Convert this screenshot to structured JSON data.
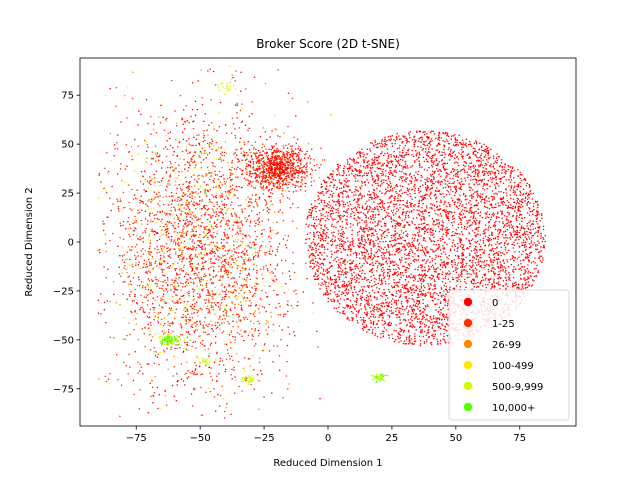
{
  "chart_data": {
    "type": "scatter",
    "title": "Broker Score (2D t-SNE)",
    "xlabel": "Reduced Dimension 1",
    "ylabel": "Reduced Dimension 2",
    "xlim": [
      -97,
      97
    ],
    "ylim": [
      -94,
      94
    ],
    "xticks": [
      -75,
      -50,
      -25,
      0,
      25,
      50,
      75
    ],
    "yticks": [
      -75,
      -50,
      -25,
      0,
      25,
      50,
      75
    ],
    "grid": false,
    "legend_position": "lower right",
    "series": [
      {
        "name": "0",
        "color": "#ff0000"
      },
      {
        "name": "1-25",
        "color": "#ff3300"
      },
      {
        "name": "26-99",
        "color": "#ff8c00"
      },
      {
        "name": "100-499",
        "color": "#ffe600"
      },
      {
        "name": "500-9,999",
        "color": "#ccff00"
      },
      {
        "name": "10,000+",
        "color": "#55ff00"
      }
    ],
    "clusters": [
      {
        "series": "0",
        "center": [
          38,
          2
        ],
        "radius": [
          47,
          55
        ],
        "points": 5200,
        "shape": "disc"
      },
      {
        "series": "0",
        "center": [
          -50,
          -5
        ],
        "radius": [
          40,
          80
        ],
        "points": 1100,
        "shape": "gauss"
      },
      {
        "series": "1-25",
        "center": [
          -50,
          -5
        ],
        "radius": [
          40,
          80
        ],
        "points": 1300,
        "shape": "gauss"
      },
      {
        "series": "1-25",
        "center": [
          -20,
          38
        ],
        "radius": [
          14,
          12
        ],
        "points": 500,
        "shape": "gauss"
      },
      {
        "series": "0",
        "center": [
          -20,
          38
        ],
        "radius": [
          14,
          12
        ],
        "points": 350,
        "shape": "gauss"
      },
      {
        "series": "26-99",
        "center": [
          -50,
          -5
        ],
        "radius": [
          40,
          80
        ],
        "points": 320,
        "shape": "gauss"
      },
      {
        "series": "100-499",
        "center": [
          -50,
          -5
        ],
        "radius": [
          40,
          80
        ],
        "points": 120,
        "shape": "gauss"
      },
      {
        "series": "500-9,999",
        "center": [
          -62,
          -50
        ],
        "radius": [
          4,
          3
        ],
        "points": 90,
        "shape": "gauss"
      },
      {
        "series": "500-9,999",
        "center": [
          -31,
          -70
        ],
        "radius": [
          3,
          2
        ],
        "points": 40,
        "shape": "gauss"
      },
      {
        "series": "500-9,999",
        "center": [
          20,
          -69
        ],
        "radius": [
          3,
          2
        ],
        "points": 40,
        "shape": "gauss"
      },
      {
        "series": "500-9,999",
        "center": [
          -48,
          -61
        ],
        "radius": [
          2,
          2
        ],
        "points": 25,
        "shape": "gauss"
      },
      {
        "series": "500-9,999",
        "center": [
          -40,
          80
        ],
        "radius": [
          4,
          4
        ],
        "points": 25,
        "shape": "gauss"
      },
      {
        "series": "500-9,999",
        "center": [
          -50,
          -5
        ],
        "radius": [
          40,
          80
        ],
        "points": 140,
        "shape": "gauss"
      },
      {
        "series": "10,000+",
        "center": [
          -62,
          -50
        ],
        "radius": [
          4,
          3
        ],
        "points": 50,
        "shape": "gauss"
      },
      {
        "series": "10,000+",
        "center": [
          -50,
          -5
        ],
        "radius": [
          40,
          80
        ],
        "points": 40,
        "shape": "gauss"
      },
      {
        "series": "10,000+",
        "center": [
          20,
          -69
        ],
        "radius": [
          3,
          2
        ],
        "points": 15,
        "shape": "gauss"
      }
    ]
  }
}
